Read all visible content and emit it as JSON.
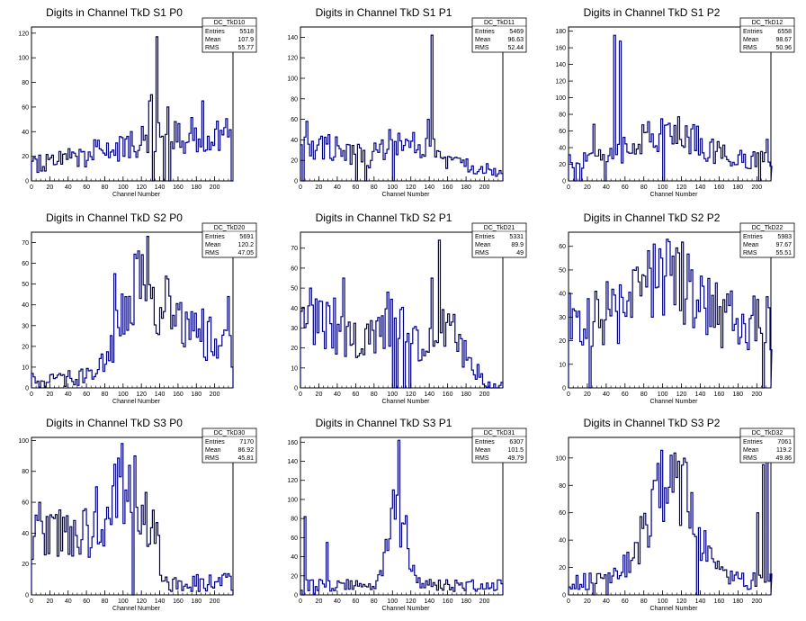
{
  "stats_labels": {
    "entries": "Entries",
    "mean": "Mean",
    "rms": "RMS"
  },
  "colors": {
    "line": "#00007f",
    "axis": "#000000",
    "background": "#ffffff"
  },
  "chart_data": [
    {
      "type": "histogram",
      "title": "Digits in Channel TkD S1 P0",
      "xlabel": "Channel Number",
      "ylabel": "",
      "stats_name": "DC_TkD10",
      "entries": "5518",
      "mean": "107.9",
      "rms": "55.77",
      "xlim": [
        0,
        220
      ],
      "ylim": [
        0,
        125
      ],
      "xticks": [
        0,
        20,
        40,
        60,
        80,
        100,
        120,
        140,
        160,
        180,
        200
      ],
      "yticks": [
        0,
        20,
        40,
        60,
        80,
        100,
        120
      ],
      "peaks": [
        [
          136,
          117
        ],
        [
          148,
          60
        ],
        [
          185,
          65
        ]
      ],
      "spikes": [
        [
          128,
          65
        ],
        [
          130,
          70
        ]
      ],
      "holes": [
        [
          132,
          0
        ],
        [
          144,
          0
        ],
        [
          150,
          0
        ],
        [
          218,
          0
        ]
      ]
    },
    {
      "type": "histogram",
      "title": "Digits in Channel TkD S1 P1",
      "xlabel": "Channel Number",
      "ylabel": "",
      "stats_name": "DC_TkD11",
      "entries": "5469",
      "mean": "96.63",
      "rms": "52.44",
      "xlim": [
        0,
        220
      ],
      "ylim": [
        0,
        150
      ],
      "xticks": [
        0,
        20,
        40,
        60,
        80,
        100,
        120,
        140,
        160,
        180,
        200
      ],
      "yticks": [
        0,
        20,
        40,
        60,
        80,
        100,
        120,
        140
      ],
      "peaks": [
        [
          142,
          142
        ],
        [
          138,
          60
        ],
        [
          70,
          75
        ]
      ],
      "spikes": [
        [
          6,
          58
        ],
        [
          95,
          50
        ]
      ],
      "holes": [
        [
          2,
          0
        ],
        [
          60,
          0
        ],
        [
          70,
          0
        ],
        [
          100,
          0
        ]
      ]
    },
    {
      "type": "histogram",
      "title": "Digits in Channel TkD S1 P2",
      "xlabel": "Channel Number",
      "ylabel": "",
      "stats_name": "DC_TkD12",
      "entries": "6558",
      "mean": "98.67",
      "rms": "50.96",
      "xlim": [
        0,
        215
      ],
      "ylim": [
        0,
        185
      ],
      "xticks": [
        0,
        20,
        40,
        60,
        80,
        100,
        120,
        140,
        160,
        180,
        200
      ],
      "yticks": [
        0,
        20,
        40,
        60,
        80,
        100,
        120,
        140,
        160,
        180
      ],
      "peaks": [
        [
          48,
          175
        ],
        [
          54,
          168
        ],
        [
          26,
          68
        ],
        [
          210,
          50
        ]
      ],
      "spikes": [
        [
          30,
          30
        ]
      ],
      "holes": [
        [
          6,
          0
        ],
        [
          12,
          0
        ],
        [
          38,
          0
        ],
        [
          100,
          0
        ],
        [
          202,
          0
        ]
      ]
    },
    {
      "type": "histogram",
      "title": "Digits in Channel TkD S2 P0",
      "xlabel": "Channel Number",
      "ylabel": "",
      "stats_name": "DC_TkD20",
      "entries": "5691",
      "mean": "120.2",
      "rms": "47.05",
      "xlim": [
        0,
        220
      ],
      "ylim": [
        0,
        75
      ],
      "xticks": [
        0,
        20,
        40,
        60,
        80,
        100,
        120,
        140,
        160,
        180,
        200
      ],
      "yticks": [
        0,
        10,
        20,
        30,
        40,
        50,
        60,
        70
      ],
      "peaks": [
        [
          125,
          73
        ],
        [
          116,
          66
        ],
        [
          90,
          55
        ]
      ],
      "spikes": [
        [
          214,
          44
        ],
        [
          186,
          38
        ]
      ],
      "holes": [
        [
          218,
          10
        ]
      ]
    },
    {
      "type": "histogram",
      "title": "Digits in Channel TkD S2 P1",
      "xlabel": "Channel Number",
      "ylabel": "",
      "stats_name": "DC_TkD21",
      "entries": "5331",
      "mean": "89.9",
      "rms": "49",
      "xlim": [
        0,
        220
      ],
      "ylim": [
        0,
        78
      ],
      "xticks": [
        0,
        20,
        40,
        60,
        80,
        100,
        120,
        140,
        160,
        180,
        200
      ],
      "yticks": [
        0,
        10,
        20,
        30,
        40,
        50,
        60,
        70
      ],
      "peaks": [
        [
          150,
          74
        ],
        [
          142,
          55
        ],
        [
          10,
          50
        ],
        [
          45,
          55
        ]
      ],
      "spikes": [
        [
          35,
          45
        ]
      ],
      "holes": [
        [
          100,
          0
        ],
        [
          104,
          0
        ],
        [
          112,
          0
        ],
        [
          118,
          0
        ]
      ]
    },
    {
      "type": "histogram",
      "title": "Digits in Channel TkD S2 P2",
      "xlabel": "Channel Number",
      "ylabel": "",
      "stats_name": "DC_TkD22",
      "entries": "5983",
      "mean": "97.67",
      "rms": "55.51",
      "xlim": [
        0,
        215
      ],
      "ylim": [
        0,
        66
      ],
      "xticks": [
        0,
        20,
        40,
        60,
        80,
        100,
        120,
        140,
        160,
        180,
        200
      ],
      "yticks": [
        0,
        10,
        20,
        30,
        40,
        50,
        60
      ],
      "peaks": [
        [
          105,
          62
        ],
        [
          98,
          55
        ],
        [
          212,
          34
        ]
      ],
      "spikes": [
        [
          40,
          45
        ]
      ],
      "holes": [
        [
          22,
          0
        ],
        [
          206,
          0
        ]
      ]
    },
    {
      "type": "histogram",
      "title": "Digits in Channel TkD S3 P0",
      "xlabel": "Channel Number",
      "ylabel": "",
      "stats_name": "DC_TkD30",
      "entries": "7170",
      "mean": "86.92",
      "rms": "45.81",
      "xlim": [
        0,
        220
      ],
      "ylim": [
        0,
        102
      ],
      "xticks": [
        0,
        20,
        40,
        60,
        80,
        100,
        120,
        140,
        160,
        180,
        200
      ],
      "yticks": [
        0,
        20,
        40,
        60,
        80,
        100
      ],
      "peaks": [
        [
          98,
          98
        ],
        [
          112,
          90
        ],
        [
          8,
          60
        ],
        [
          70,
          70
        ]
      ],
      "spikes": [
        [
          30,
          55
        ]
      ],
      "holes": [
        [
          110,
          0
        ]
      ]
    },
    {
      "type": "histogram",
      "title": "Digits in Channel TkD S3 P1",
      "xlabel": "Channel Number",
      "ylabel": "",
      "stats_name": "DC_TkD31",
      "entries": "6307",
      "mean": "101.5",
      "rms": "49.79",
      "xlim": [
        0,
        220
      ],
      "ylim": [
        0,
        165
      ],
      "xticks": [
        0,
        20,
        40,
        60,
        80,
        100,
        120,
        140,
        160,
        180,
        200
      ],
      "yticks": [
        0,
        20,
        40,
        60,
        80,
        100,
        120,
        140,
        160
      ],
      "peaks": [
        [
          106,
          162
        ],
        [
          100,
          110
        ],
        [
          4,
          82
        ]
      ],
      "spikes": [
        [
          28,
          55
        ]
      ],
      "holes": [
        [
          2,
          0
        ],
        [
          14,
          0
        ]
      ]
    },
    {
      "type": "histogram",
      "title": "Digits in Channel TkD S3 P2",
      "xlabel": "Channel Number",
      "ylabel": "",
      "stats_name": "DC_TkD32",
      "entries": "7061",
      "mean": "119.2",
      "rms": "49.86",
      "xlim": [
        0,
        215
      ],
      "ylim": [
        0,
        115
      ],
      "xticks": [
        0,
        20,
        40,
        60,
        80,
        100,
        120,
        140,
        160,
        180,
        200
      ],
      "yticks": [
        0,
        20,
        40,
        60,
        80,
        100
      ],
      "peaks": [
        [
          108,
          102
        ],
        [
          210,
          115
        ],
        [
          206,
          95
        ]
      ],
      "spikes": [
        [
          200,
          60
        ]
      ],
      "holes": [
        [
          26,
          0
        ],
        [
          40,
          0
        ],
        [
          136,
          0
        ]
      ]
    }
  ]
}
